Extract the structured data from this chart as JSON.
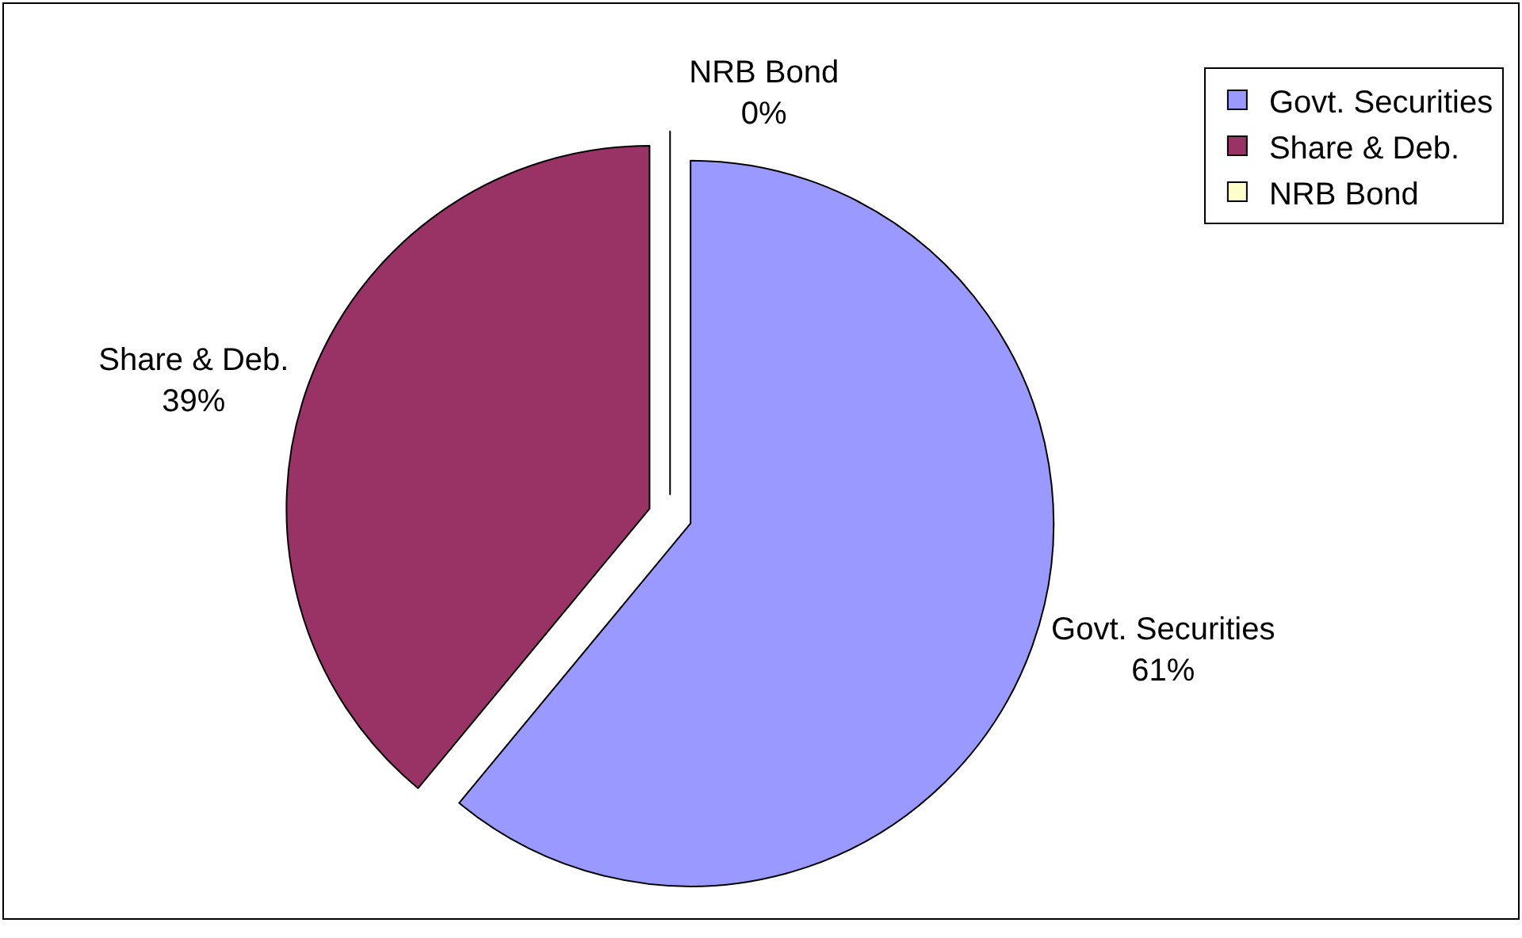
{
  "chart_data": {
    "type": "pie",
    "categories": [
      "Govt. Securities",
      "Share & Deb.",
      "NRB Bond"
    ],
    "values": [
      61,
      39,
      0
    ],
    "value_labels": [
      "61%",
      "39%",
      "0%"
    ],
    "colors": [
      "#9999ff",
      "#993366",
      "#ffffcc"
    ],
    "legend": "top right"
  }
}
